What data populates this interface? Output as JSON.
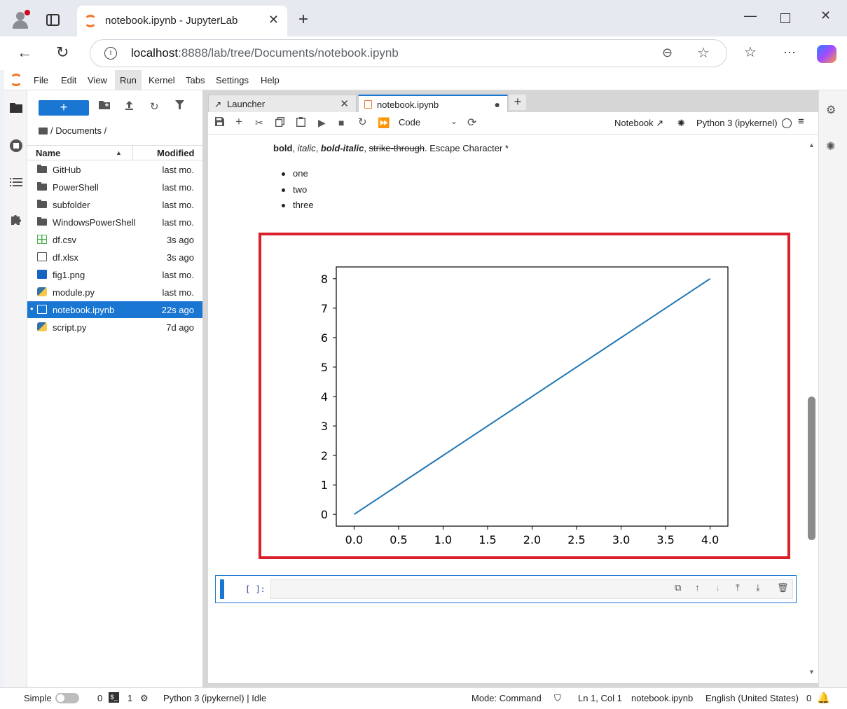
{
  "browser": {
    "tab_title": "notebook.ipynb - JupyterLab",
    "url_host": "localhost",
    "url_rest": ":8888/lab/tree/Documents/notebook.ipynb"
  },
  "menu": {
    "items": [
      "File",
      "Edit",
      "View",
      "Run",
      "Kernel",
      "Tabs",
      "Settings",
      "Help"
    ],
    "active": "Run"
  },
  "filebrowser": {
    "breadcrumb": "/ Documents /",
    "col_name": "Name",
    "col_modified": "Modified",
    "files": [
      {
        "name": "GitHub",
        "modified": "last mo.",
        "icon": "folder-icon"
      },
      {
        "name": "PowerShell",
        "modified": "last mo.",
        "icon": "folder-icon"
      },
      {
        "name": "subfolder",
        "modified": "last mo.",
        "icon": "folder-icon"
      },
      {
        "name": "WindowsPowerShell",
        "modified": "last mo.",
        "icon": "folder-icon"
      },
      {
        "name": "df.csv",
        "modified": "3s ago",
        "icon": "csv-icon"
      },
      {
        "name": "df.xlsx",
        "modified": "3s ago",
        "icon": "file-icon"
      },
      {
        "name": "fig1.png",
        "modified": "last mo.",
        "icon": "image-icon"
      },
      {
        "name": "module.py",
        "modified": "last mo.",
        "icon": "python-icon"
      },
      {
        "name": "notebook.ipynb",
        "modified": "22s ago",
        "icon": "notebook-icon",
        "selected": true
      },
      {
        "name": "script.py",
        "modified": "7d ago",
        "icon": "python-icon"
      }
    ]
  },
  "doc_tabs": [
    {
      "label": "Launcher"
    },
    {
      "label": "notebook.ipynb"
    }
  ],
  "toolbar": {
    "cell_type": "Code",
    "notebook_label": "Notebook",
    "kernel_label": "Python 3 (ipykernel)"
  },
  "markdown": {
    "bold": "bold",
    "sep1": ", ",
    "italic": "italic",
    "sep2": ", ",
    "bold_italic": "bold-italic",
    "sep3": ", ",
    "strike": "strike-through",
    "tail": ". Escape Character *",
    "list": [
      "one",
      "two",
      "three"
    ]
  },
  "cell": {
    "prompt": "[ ]:"
  },
  "chart_data": {
    "type": "line",
    "x": [
      0.0,
      4.0
    ],
    "series": [
      {
        "values": [
          0,
          8
        ],
        "color": "#1f77b4"
      }
    ],
    "xlim": [
      -0.2,
      4.2
    ],
    "ylim": [
      -0.4,
      8.4
    ],
    "xticks": [
      "0.0",
      "0.5",
      "1.0",
      "1.5",
      "2.0",
      "2.5",
      "3.0",
      "3.5",
      "4.0"
    ],
    "yticks": [
      "0",
      "1",
      "2",
      "3",
      "4",
      "5",
      "6",
      "7",
      "8"
    ],
    "title": "",
    "xlabel": "",
    "ylabel": "",
    "grid": false
  },
  "status": {
    "mode_label": "Simple",
    "terminals": "0",
    "kernels": "1",
    "kernel_status": "Python 3 (ipykernel) | Idle",
    "command_mode": "Mode: Command",
    "cursor": "Ln 1, Col 1",
    "file": "notebook.ipynb",
    "language": "English (United States)",
    "notifications": "0"
  }
}
